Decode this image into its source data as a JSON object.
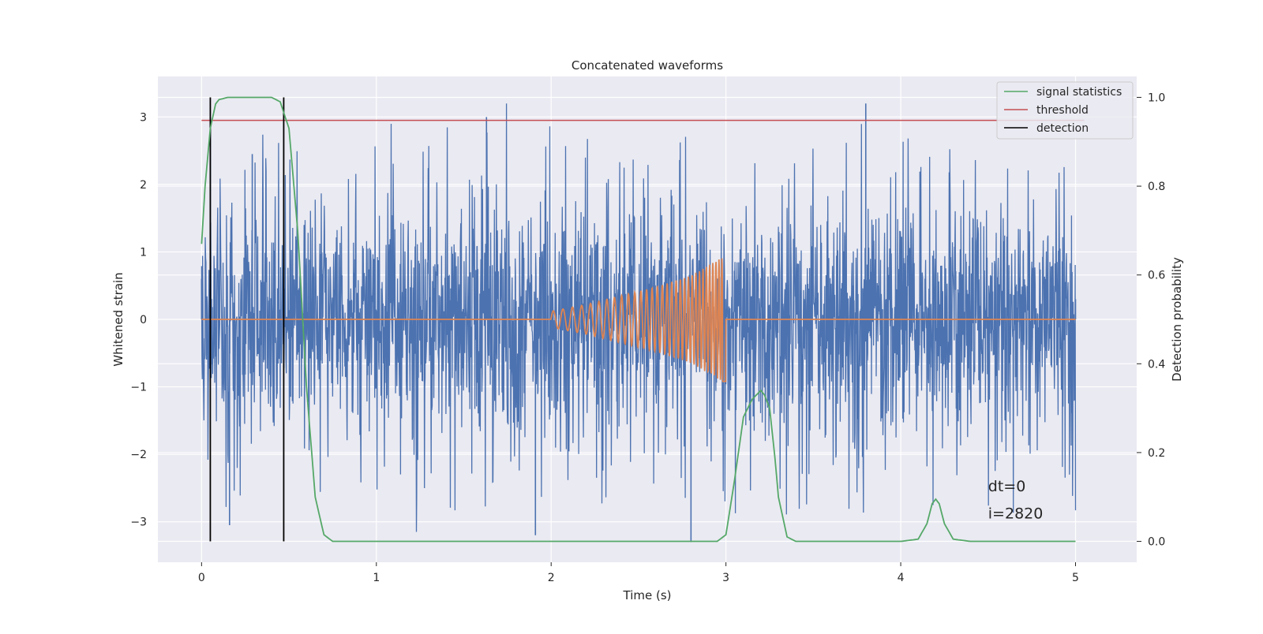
{
  "chart_data": {
    "type": "line",
    "title": "Concatenated waveforms",
    "xlabel": "Time (s)",
    "ylabel": "Whitened strain",
    "y2label": "Detection probability",
    "xlim": [
      -0.25,
      5.35
    ],
    "ylim": [
      -3.6,
      3.6
    ],
    "y2lim": [
      -0.047,
      1.047
    ],
    "xticks": [
      0,
      1,
      2,
      3,
      4,
      5
    ],
    "xtick_labels": [
      "0",
      "1",
      "2",
      "3",
      "4",
      "5"
    ],
    "yticks": [
      3,
      2,
      1,
      0,
      -1,
      -2,
      -3
    ],
    "ytick_labels": [
      "3",
      "2",
      "1",
      "0",
      "−1",
      "−2",
      "−3"
    ],
    "y2ticks": [
      1.0,
      0.8,
      0.6,
      0.4,
      0.2,
      0.0
    ],
    "y2tick_labels": [
      "1.0",
      "0.8",
      "0.6",
      "0.4",
      "0.2",
      "0.0"
    ],
    "grid": true,
    "legend_position": "top-right",
    "legend": [
      {
        "label": "signal statistics",
        "color": "#55a868"
      },
      {
        "label": "threshold",
        "color": "#c44e52"
      },
      {
        "label": "detection",
        "color": "#000000"
      }
    ],
    "series": [
      {
        "kind": "noise",
        "axis": "left",
        "color": "#4c72b0",
        "x_range": [
          0,
          5
        ],
        "band_sigma": 0.85,
        "peak_min": -3.15,
        "peak_max": 3.2,
        "x_example": [
          0,
          0.05,
          0.16,
          0.29,
          1.63,
          1.91,
          2.8,
          3.8,
          5.0
        ],
        "y_example": [
          0.6,
          3.0,
          -3.05,
          2.45,
          3.0,
          -3.2,
          -3.3,
          3.2,
          0.3
        ]
      },
      {
        "kind": "chirp",
        "axis": "left",
        "color": "#dd8452",
        "x": [
          0,
          2.0,
          2.2,
          2.4,
          2.6,
          2.8,
          2.98,
          3.0,
          5.0
        ],
        "amplitude": [
          0,
          0.12,
          0.22,
          0.35,
          0.48,
          0.65,
          0.92,
          0,
          0
        ],
        "frequency_start_hz": 18,
        "frequency_end_hz": 60
      },
      {
        "name": "signal statistics",
        "axis": "right",
        "color": "#55a868",
        "x": [
          0.0,
          0.02,
          0.05,
          0.08,
          0.1,
          0.15,
          0.3,
          0.4,
          0.45,
          0.5,
          0.55,
          0.6,
          0.65,
          0.7,
          0.75,
          1.0,
          2.0,
          2.95,
          3.0,
          3.05,
          3.1,
          3.15,
          3.2,
          3.22,
          3.25,
          3.28,
          3.3,
          3.35,
          3.4,
          4.0,
          4.1,
          4.15,
          4.18,
          4.2,
          4.22,
          4.25,
          4.3,
          4.4,
          5.0
        ],
        "y": [
          0.67,
          0.8,
          0.93,
          0.985,
          0.995,
          1.0,
          1.0,
          1.0,
          0.99,
          0.93,
          0.7,
          0.35,
          0.1,
          0.015,
          0.0,
          0.0,
          0.0,
          0.0,
          0.015,
          0.14,
          0.28,
          0.32,
          0.34,
          0.33,
          0.3,
          0.19,
          0.1,
          0.01,
          0.0,
          0.0,
          0.005,
          0.04,
          0.085,
          0.095,
          0.085,
          0.04,
          0.005,
          0.0,
          0.0
        ]
      },
      {
        "name": "threshold",
        "axis": "left",
        "color": "#c44e52",
        "x": [
          0,
          5.05
        ],
        "y": [
          2.95,
          2.95
        ]
      }
    ],
    "detections": [
      0.05,
      0.47
    ],
    "detection_y_range": [
      0.0,
      1.0
    ],
    "annotations": [
      {
        "text": "dt=0",
        "x": 4.5,
        "y": -2.55
      },
      {
        "text": "i=2820",
        "x": 4.5,
        "y": -2.95
      }
    ]
  }
}
